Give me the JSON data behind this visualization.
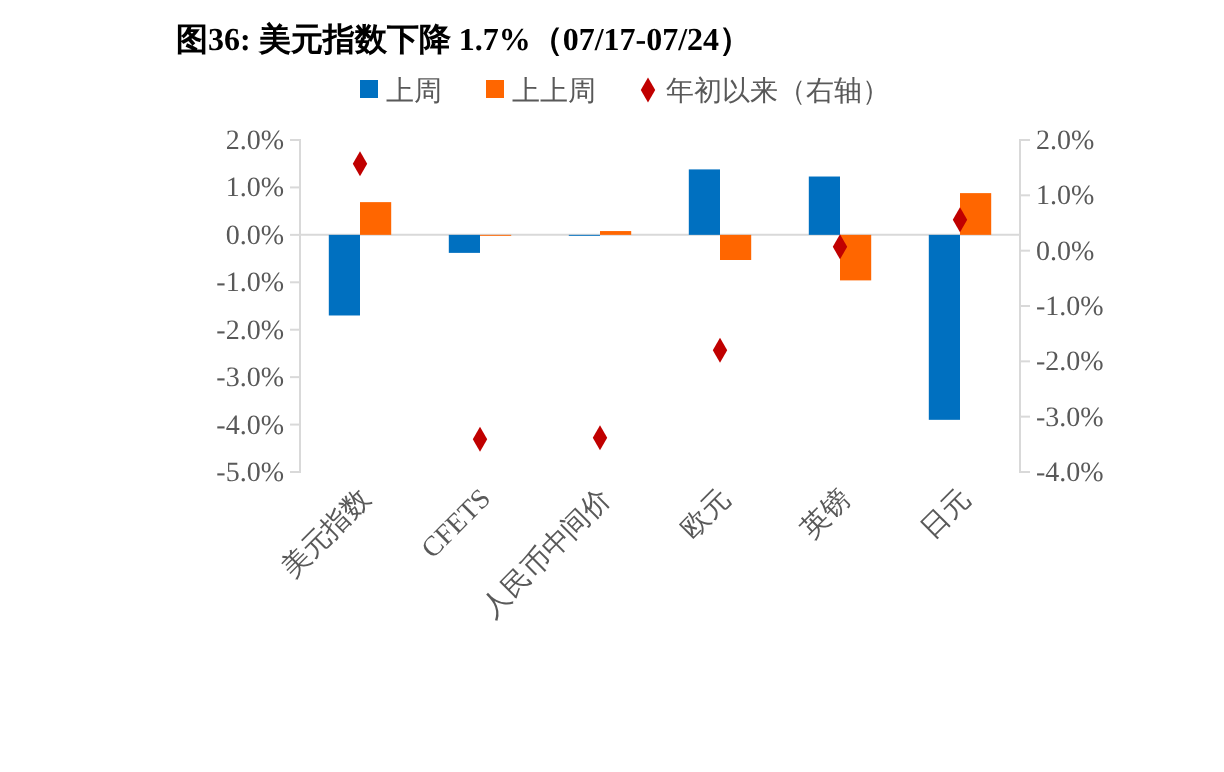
{
  "chart_data": {
    "type": "bar",
    "title": "图36:  美元指数下降 1.7%（07/17-07/24）",
    "categories": [
      "美元指数",
      "CFETS",
      "人民币中间价",
      "欧元",
      "英镑",
      "日元"
    ],
    "series": [
      {
        "name": "上周",
        "color": "#0070c0",
        "values": [
          -1.7,
          -0.38,
          -0.02,
          1.38,
          1.23,
          -3.9
        ]
      },
      {
        "name": "上上周",
        "color": "#ff6600",
        "values": [
          0.69,
          -0.02,
          0.08,
          -0.53,
          -0.96,
          0.88
        ]
      },
      {
        "name": "年初以来（右轴）",
        "type": "scatter",
        "axis": "y2",
        "color": "#c00000",
        "values": [
          1.57,
          -3.41,
          -3.38,
          -1.8,
          0.07,
          0.56
        ]
      }
    ],
    "ylim": [
      -5,
      2
    ],
    "yticks": [
      {
        "value": -5,
        "label": "-5.0%"
      },
      {
        "value": -4,
        "label": "-4.0%"
      },
      {
        "value": -3,
        "label": "-3.0%"
      },
      {
        "value": -2,
        "label": "-2.0%"
      },
      {
        "value": -1,
        "label": "-1.0%"
      },
      {
        "value": 0,
        "label": "0.0%"
      },
      {
        "value": 1,
        "label": "1.0%"
      },
      {
        "value": 2,
        "label": "2.0%"
      }
    ],
    "y2lim": [
      -4,
      2
    ],
    "y2ticks": [
      {
        "value": -4,
        "label": "-4.0%"
      },
      {
        "value": -3,
        "label": "-3.0%"
      },
      {
        "value": -2,
        "label": "-2.0%"
      },
      {
        "value": -1,
        "label": "-1.0%"
      },
      {
        "value": 0,
        "label": "0.0%"
      },
      {
        "value": 1,
        "label": "1.0%"
      },
      {
        "value": 2,
        "label": "2.0%"
      }
    ],
    "ref_lines": [
      {
        "axis": "y",
        "value": 0,
        "color": "#d9d9d9"
      }
    ],
    "marker": "diamond",
    "grid": false,
    "legend": "top"
  }
}
